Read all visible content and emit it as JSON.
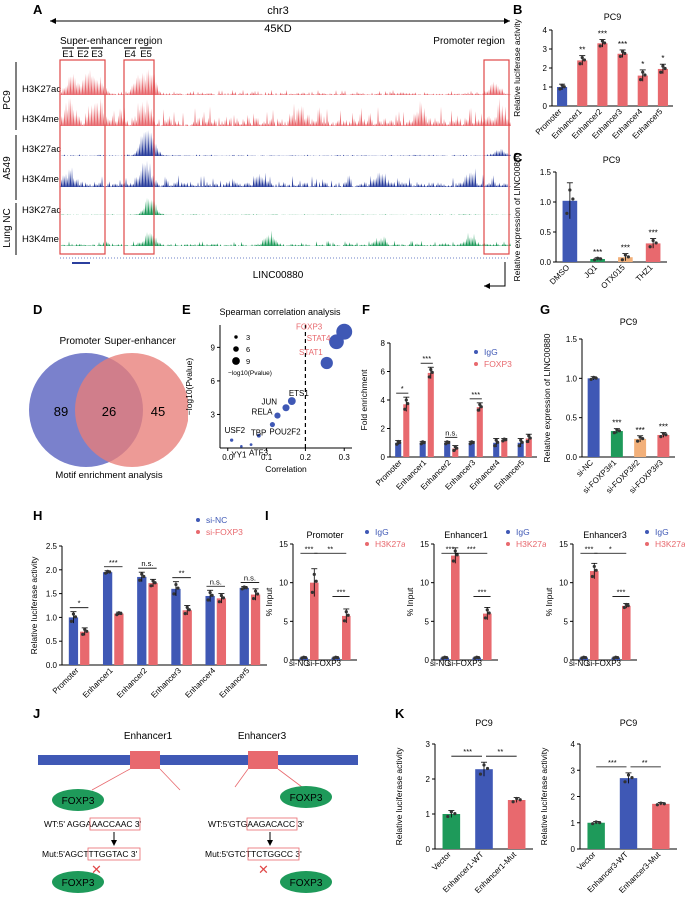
{
  "panel_labels": [
    "A",
    "B",
    "C",
    "D",
    "E",
    "F",
    "G",
    "H",
    "I",
    "J",
    "K"
  ],
  "colors": {
    "red": "#E8696E",
    "blue": "#3F58B5",
    "green": "#1E9A5A",
    "orange": "#F2B07A",
    "navy": "#2B3F9E",
    "venn_blue": "#6B73C7",
    "venn_red": "#E87E78",
    "box_red": "#E04848"
  },
  "panel_a": {
    "chrom": "chr3",
    "span": "45KD",
    "se_label": "Super-enhancer region",
    "promoter_label": "Promoter region",
    "enhancers": [
      "E1",
      "E2",
      "E3",
      "E4",
      "E5"
    ],
    "groups": [
      {
        "name": "PC9",
        "tracks": [
          "H3K27ac",
          "H3K4mel"
        ],
        "color": "#E8696E"
      },
      {
        "name": "A549",
        "tracks": [
          "H3K27ac",
          "H3K4mel"
        ],
        "color": "#2B3F9E"
      },
      {
        "name": "Lung NC",
        "tracks": [
          "H3K27ac",
          "H3K4mel"
        ],
        "color": "#1E9A5A"
      }
    ],
    "gene": "LINC00880"
  },
  "panel_d": {
    "left_label": "Promoter",
    "right_label": "Super-enhancer",
    "left_only": "89",
    "overlap": "26",
    "right_only": "45",
    "caption": "Motif enrichment analysis"
  },
  "panel_j": {
    "enh1": "Enhancer1",
    "enh3": "Enhancer3",
    "factor": "FOXP3",
    "wt1_pre": "WT:5' AGG",
    "wt1_box": "AAACCAAC",
    "wt1_post": " 3'",
    "mut1_pre": "Mut:5'AGC",
    "mut1_box": "TTTGGTAC",
    "mut1_post": " 3'",
    "wt3_pre": "WT:5'GTG",
    "wt3_box": "AAGACACC",
    "wt3_post": " 3'",
    "mut3_pre": "Mut:5'GTC",
    "mut3_box": "TTCTGGCC",
    "mut3_post": " 3'"
  },
  "chart_data": [
    {
      "id": "B",
      "type": "bar",
      "title": "PC9",
      "ylabel": "Relative luciferase activity",
      "ylim": [
        0,
        4
      ],
      "yticks": [
        0,
        1,
        2,
        3,
        4
      ],
      "categories": [
        "Promoter",
        "Enhancer1",
        "Enhancer2",
        "Enhancer3",
        "Enhancer4",
        "Enhancer5"
      ],
      "values": [
        1.0,
        2.4,
        3.3,
        2.75,
        1.6,
        1.95
      ],
      "errors": [
        0.15,
        0.25,
        0.2,
        0.2,
        0.3,
        0.25
      ],
      "colors": [
        "#3F58B5",
        "#E8696E",
        "#E8696E",
        "#E8696E",
        "#E8696E",
        "#E8696E"
      ],
      "annotations": [
        "",
        "**",
        "***",
        "***",
        "*",
        "*"
      ]
    },
    {
      "id": "C",
      "type": "bar",
      "title": "PC9",
      "ylabel": "Relative expression of LINC00880",
      "ylim": [
        0,
        1.5
      ],
      "yticks": [
        0.0,
        0.5,
        1.0,
        1.5
      ],
      "categories": [
        "DMSO",
        "JQ1",
        "OTX015",
        "THZ1"
      ],
      "values": [
        1.02,
        0.05,
        0.08,
        0.31
      ],
      "errors": [
        0.3,
        0.02,
        0.06,
        0.08
      ],
      "colors": [
        "#3F58B5",
        "#1E9A5A",
        "#F2B07A",
        "#E8696E"
      ],
      "annotations": [
        "",
        "***",
        "***",
        "***"
      ]
    },
    {
      "id": "E",
      "type": "scatter",
      "title": "Spearman correlation analysis",
      "xlabel": "Correlation",
      "ylabel": "−log10(Pvalue)",
      "xlim": [
        -0.02,
        0.32
      ],
      "ylim": [
        0,
        11
      ],
      "xticks": [
        0.0,
        0.1,
        0.2,
        0.3
      ],
      "yticks": [
        3,
        6,
        9
      ],
      "legend_title": "−log10(Pvalue)",
      "legend_sizes": [
        3,
        6,
        9
      ],
      "threshold_x": 0.2,
      "points": [
        {
          "label": "FOXP3",
          "x": 0.3,
          "y": 10.4,
          "highlight": true
        },
        {
          "label": "STAT4",
          "x": 0.28,
          "y": 9.5,
          "highlight": true
        },
        {
          "label": "STAT1",
          "x": 0.255,
          "y": 7.6,
          "highlight": true
        },
        {
          "label": "ETS1",
          "x": 0.165,
          "y": 4.2,
          "highlight": false
        },
        {
          "label": "JUN",
          "x": 0.15,
          "y": 3.6,
          "highlight": false
        },
        {
          "label": "RELA",
          "x": 0.128,
          "y": 2.9,
          "highlight": false
        },
        {
          "label": "POU2F2",
          "x": 0.115,
          "y": 2.1,
          "highlight": false
        },
        {
          "label": "TBP",
          "x": 0.08,
          "y": 1.1,
          "highlight": false
        },
        {
          "label": "USF2",
          "x": 0.01,
          "y": 0.7,
          "highlight": false
        },
        {
          "label": "YY1",
          "x": 0.035,
          "y": 0.15,
          "highlight": false
        },
        {
          "label": "ATF3",
          "x": 0.06,
          "y": 0.3,
          "highlight": false
        }
      ]
    },
    {
      "id": "F",
      "type": "bar",
      "ylabel": "Fold enrichment",
      "ylim": [
        0,
        8
      ],
      "yticks": [
        0,
        2,
        4,
        6,
        8
      ],
      "categories": [
        "Promoter",
        "Enhancer1",
        "Enhancer2",
        "Enhancer3",
        "Enhancer4",
        "Enhancer5"
      ],
      "series": [
        {
          "name": "IgG",
          "color": "#3F58B5",
          "values": [
            1.0,
            1.0,
            1.0,
            1.0,
            1.0,
            1.0
          ],
          "errors": [
            0.15,
            0.1,
            0.1,
            0.1,
            0.3,
            0.3
          ]
        },
        {
          "name": "FOXP3",
          "color": "#E8696E",
          "values": [
            3.7,
            5.9,
            0.6,
            3.5,
            1.2,
            1.3
          ],
          "errors": [
            0.5,
            0.4,
            0.2,
            0.3,
            0.1,
            0.3
          ]
        }
      ],
      "annotations": [
        "*",
        "***",
        "n.s.",
        "***",
        "",
        ""
      ]
    },
    {
      "id": "G",
      "type": "bar",
      "title": "PC9",
      "ylabel": "Relative expression of LINC00880",
      "ylim": [
        0,
        1.5
      ],
      "yticks": [
        0.0,
        0.5,
        1.0,
        1.5
      ],
      "categories": [
        "si-NC",
        "si-FOXP3#1",
        "si-FOXP3#2",
        "si-FOXP3#3"
      ],
      "values": [
        1.0,
        0.33,
        0.23,
        0.28
      ],
      "errors": [
        0.02,
        0.03,
        0.04,
        0.03
      ],
      "colors": [
        "#3F58B5",
        "#1E9A5A",
        "#F2B07A",
        "#E8696E"
      ],
      "annotations": [
        "",
        "***",
        "***",
        "***"
      ]
    },
    {
      "id": "H",
      "type": "bar",
      "ylabel": "Relative luciferase activity",
      "ylim": [
        0,
        2.5
      ],
      "yticks": [
        0.0,
        0.5,
        1.0,
        1.5,
        2.0,
        2.5
      ],
      "categories": [
        "Promoter",
        "Enhancer1",
        "Enhancer2",
        "Enhancer3",
        "Enhancer4",
        "Enhancer5"
      ],
      "series": [
        {
          "name": "si-NC",
          "color": "#3F58B5",
          "values": [
            1.0,
            1.95,
            1.85,
            1.6,
            1.45,
            1.62
          ],
          "errors": [
            0.12,
            0.03,
            0.1,
            0.15,
            0.12,
            0.03
          ]
        },
        {
          "name": "si-FOXP3",
          "color": "#E8696E",
          "values": [
            0.7,
            1.08,
            1.72,
            1.15,
            1.4,
            1.48
          ],
          "errors": [
            0.08,
            0.03,
            0.08,
            0.1,
            0.1,
            0.12
          ]
        }
      ],
      "annotations": [
        "*",
        "***",
        "n.s.",
        "**",
        "n.s.",
        "n.s."
      ]
    },
    {
      "id": "I1",
      "type": "bar",
      "title": "Promoter",
      "ylabel": "% Input",
      "ylim": [
        0,
        15
      ],
      "yticks": [
        0,
        5,
        10,
        15
      ],
      "categories": [
        "si-NC",
        "si-FOXP3"
      ],
      "series": [
        {
          "name": "IgG",
          "color": "#3F58B5",
          "values": [
            0.3,
            0.3
          ],
          "errors": [
            0.1,
            0.1
          ]
        },
        {
          "name": "H3K27ac",
          "color": "#E8696E",
          "values": [
            10.0,
            5.7
          ],
          "errors": [
            1.8,
            0.9
          ]
        }
      ],
      "annotations": [
        "***",
        "***",
        "**"
      ]
    },
    {
      "id": "I2",
      "type": "bar",
      "title": "Enhancer1",
      "ylabel": "% Input",
      "ylim": [
        0,
        15
      ],
      "yticks": [
        0,
        5,
        10,
        15
      ],
      "categories": [
        "si-NC",
        "si-FOXP3"
      ],
      "series": [
        {
          "name": "IgG",
          "color": "#3F58B5",
          "values": [
            0.3,
            0.3
          ],
          "errors": [
            0.1,
            0.1
          ]
        },
        {
          "name": "H3K27ac",
          "color": "#E8696E",
          "values": [
            13.5,
            6.0
          ],
          "errors": [
            1.0,
            0.8
          ]
        }
      ],
      "annotations": [
        "***",
        "***",
        "***"
      ]
    },
    {
      "id": "I3",
      "type": "bar",
      "title": "Enhancer3",
      "ylabel": "% Input",
      "ylim": [
        0,
        15
      ],
      "yticks": [
        0,
        5,
        10,
        15
      ],
      "categories": [
        "si-NC",
        "si-FOXP3"
      ],
      "series": [
        {
          "name": "IgG",
          "color": "#3F58B5",
          "values": [
            0.3,
            0.3
          ],
          "errors": [
            0.1,
            0.1
          ]
        },
        {
          "name": "H3K27ac",
          "color": "#E8696E",
          "values": [
            11.5,
            7.0
          ],
          "errors": [
            1.0,
            0.3
          ]
        }
      ],
      "annotations": [
        "***",
        "***",
        "*"
      ]
    },
    {
      "id": "K1",
      "type": "bar",
      "title": "PC9",
      "ylabel": "Relative luciferase activity",
      "ylim": [
        0,
        3
      ],
      "yticks": [
        0,
        1,
        2,
        3
      ],
      "categories": [
        "Vector",
        "Enhancer1-WT",
        "Enhancer1-Mut"
      ],
      "values": [
        1.0,
        2.28,
        1.4
      ],
      "errors": [
        0.1,
        0.2,
        0.07
      ],
      "colors": [
        "#1E9A5A",
        "#3F58B5",
        "#E8696E"
      ],
      "annotations": [
        "***",
        "**"
      ]
    },
    {
      "id": "K2",
      "type": "bar",
      "title": "PC9",
      "ylabel": "Relative luciferase activity",
      "ylim": [
        0,
        4
      ],
      "yticks": [
        0,
        1,
        2,
        3,
        4
      ],
      "categories": [
        "Vector",
        "Enhancer3-WT",
        "Enhancer3-Mut"
      ],
      "values": [
        1.0,
        2.7,
        1.72
      ],
      "errors": [
        0.05,
        0.2,
        0.05
      ],
      "colors": [
        "#1E9A5A",
        "#3F58B5",
        "#E8696E"
      ],
      "annotations": [
        "***",
        "**"
      ]
    }
  ]
}
